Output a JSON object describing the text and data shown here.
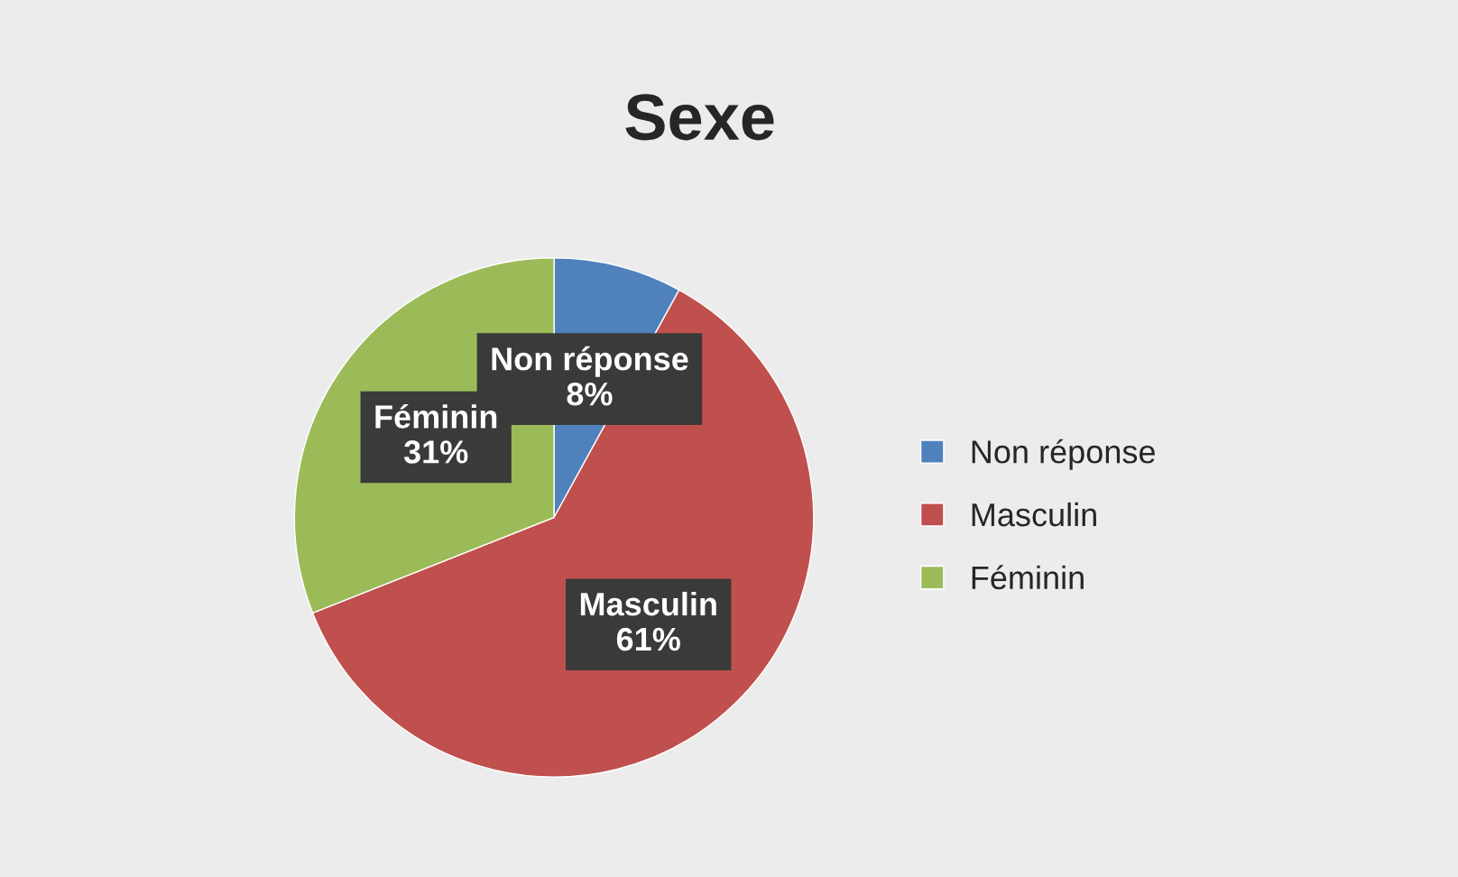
{
  "chart_data": {
    "type": "pie",
    "title": "Sexe",
    "categories": [
      "Non réponse",
      "Masculin",
      "Féminin"
    ],
    "values": [
      8,
      61,
      31
    ],
    "colors": [
      "#4f81bd",
      "#c0504d",
      "#9bbb59"
    ],
    "value_labels": [
      "Non réponse\n8%",
      "Masculin\n61%",
      "Féminin\n31%"
    ],
    "legend": "right"
  }
}
